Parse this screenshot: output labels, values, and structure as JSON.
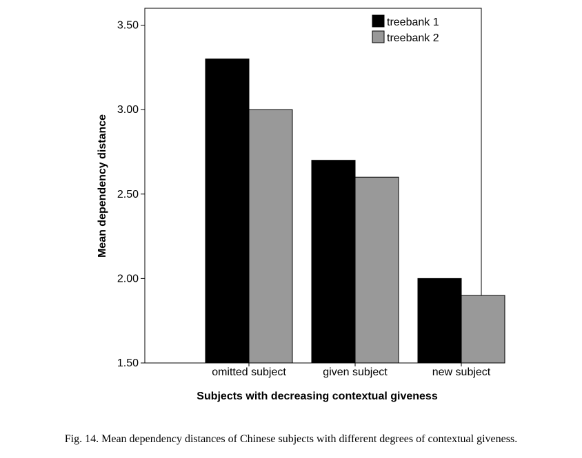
{
  "chart_data": {
    "type": "bar",
    "categories": [
      "omitted subject",
      "given subject",
      "new subject"
    ],
    "series": [
      {
        "name": "treebank 1",
        "color": "#000000",
        "values": [
          3.3,
          2.7,
          2.0
        ]
      },
      {
        "name": "treebank 2",
        "color": "#999999",
        "values": [
          3.0,
          2.6,
          1.9
        ]
      }
    ],
    "title": "",
    "xlabel": "Subjects with decreasing contextual giveness",
    "ylabel": "Mean dependency distance",
    "ylim": [
      1.5,
      3.6
    ],
    "yticks": [
      1.5,
      2.0,
      2.5,
      3.0,
      3.5
    ],
    "ytick_labels": [
      "1.50",
      "2.00",
      "2.50",
      "3.00",
      "3.50"
    ],
    "grid": false,
    "legend_position": "top-right"
  },
  "caption": "Fig. 14. Mean dependency distances of Chinese subjects with different degrees of contextual giveness."
}
